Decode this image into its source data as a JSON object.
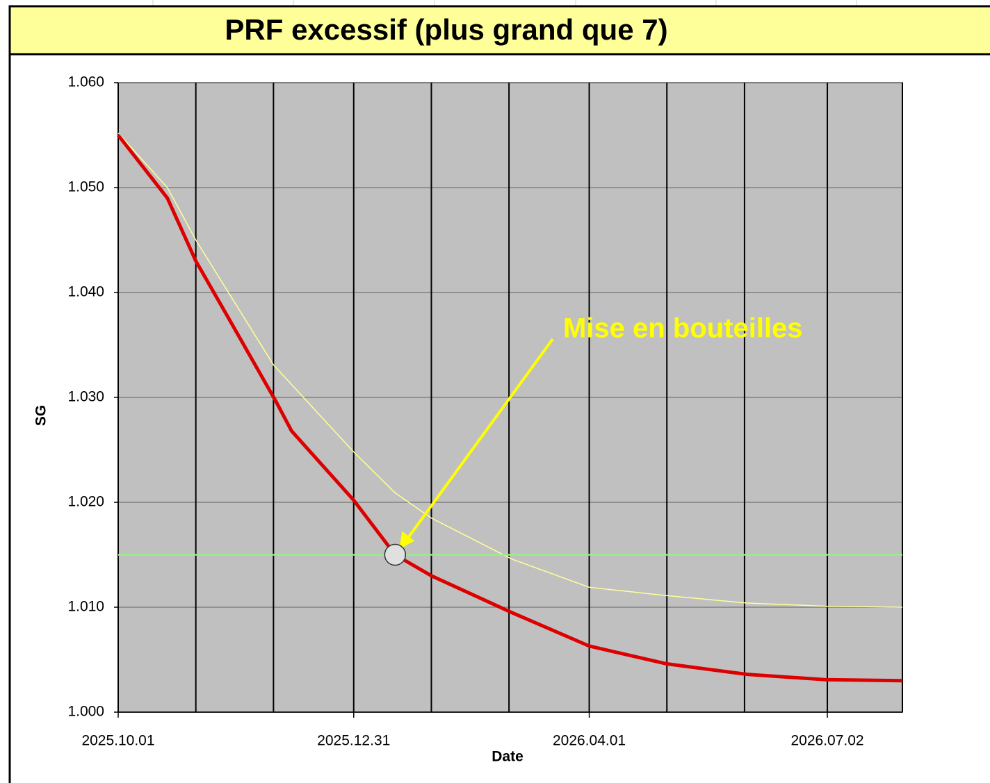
{
  "chart_data": {
    "type": "line",
    "title": "PRF excessif (plus grand que 7)",
    "xlabel": "Date",
    "ylabel": "SG",
    "xlim": [
      "2025.10.01",
      "2026.07.31"
    ],
    "xticks": [
      "2025.10.01",
      "2025.12.31",
      "2026.04.01",
      "2026.07.02"
    ],
    "xgrid": [
      "2025.10.01",
      "2025.10.31",
      "2025.11.30",
      "2025.12.31",
      "2026.01.30",
      "2026.03.01",
      "2026.04.01",
      "2026.05.01",
      "2026.05.31",
      "2026.07.02",
      "2026.07.31"
    ],
    "ylim": [
      1.0,
      1.06
    ],
    "yticks": [
      {
        "value": 1.0,
        "label": "1.000"
      },
      {
        "value": 1.01,
        "label": "1.010"
      },
      {
        "value": 1.02,
        "label": "1.020"
      },
      {
        "value": 1.03,
        "label": "1.030"
      },
      {
        "value": 1.04,
        "label": "1.040"
      },
      {
        "value": 1.05,
        "label": "1.050"
      },
      {
        "value": 1.06,
        "label": "1.060"
      }
    ],
    "grid": true,
    "background": "#c0c0c0",
    "series": [
      {
        "name": null,
        "color": "#ffff99",
        "width": 1.5,
        "x": [
          "2025.10.01",
          "2025.10.20",
          "2025.10.31",
          "2025.11.30",
          "2025.12.31",
          "2026.01.16",
          "2026.01.30",
          "2026.03.02",
          "2026.04.01",
          "2026.05.01",
          "2026.06.01",
          "2026.07.01",
          "2026.07.31"
        ],
        "values": [
          1.0552,
          1.05,
          1.045,
          1.0331,
          1.0248,
          1.0209,
          1.0185,
          1.0146,
          1.0119,
          1.0111,
          1.0104,
          1.0101,
          1.01
        ]
      },
      {
        "name": null,
        "color": "#99ee88",
        "width": 2.5,
        "x": [
          "2025.10.01",
          "2026.07.31"
        ],
        "values": [
          1.015,
          1.015
        ]
      },
      {
        "name": null,
        "color": "#dd0000",
        "width": 5,
        "x": [
          "2025.10.01",
          "2025.10.20",
          "2025.10.31",
          "2025.11.13",
          "2025.12.01",
          "2025.12.07",
          "2025.12.31",
          "2026.01.16",
          "2026.01.30",
          "2026.03.02",
          "2026.04.01",
          "2026.05.01",
          "2026.06.01",
          "2026.07.01",
          "2026.07.31"
        ],
        "values": [
          1.055,
          1.049,
          1.043,
          1.0374,
          1.0296,
          1.0268,
          1.0202,
          1.015,
          1.013,
          1.0095,
          1.0063,
          1.0046,
          1.0036,
          1.0031,
          1.003
        ]
      }
    ],
    "annotation": {
      "text": "Mise en bouteilles",
      "color": "#ffff00",
      "x": "2026.01.16",
      "y": 1.015
    }
  }
}
